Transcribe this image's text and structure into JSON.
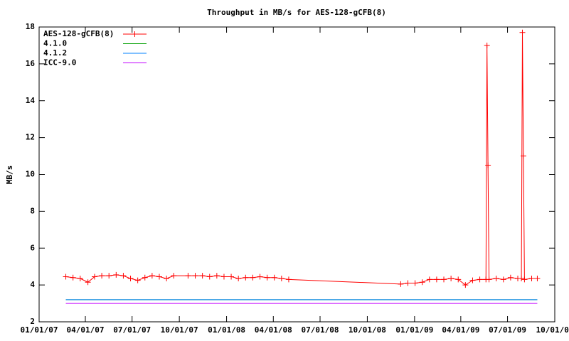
{
  "chart_data": {
    "type": "line",
    "title": "Throughput in MB/s for AES-128-gCFB(8)",
    "y_label": "MB/s",
    "xlim": [
      "2007-01-01",
      "2009-10-01"
    ],
    "xticks": [
      {
        "value": "2007-01-01",
        "label": "01/01/07"
      },
      {
        "value": "2007-04-01",
        "label": "04/01/07"
      },
      {
        "value": "2007-07-01",
        "label": "07/01/07"
      },
      {
        "value": "2007-10-01",
        "label": "10/01/07"
      },
      {
        "value": "2008-01-01",
        "label": "01/01/08"
      },
      {
        "value": "2008-04-01",
        "label": "04/01/08"
      },
      {
        "value": "2008-07-01",
        "label": "07/01/08"
      },
      {
        "value": "2008-10-01",
        "label": "10/01/08"
      },
      {
        "value": "2009-01-01",
        "label": "01/01/09"
      },
      {
        "value": "2009-04-01",
        "label": "04/01/09"
      },
      {
        "value": "2009-07-01",
        "label": "07/01/09"
      },
      {
        "value": "2009-10-01",
        "label": "10/01/09"
      }
    ],
    "ylim": [
      2,
      18
    ],
    "yticks": [
      2,
      4,
      6,
      8,
      10,
      12,
      14,
      16,
      18
    ],
    "legend": "top-left",
    "series": [
      {
        "name": "AES-128-gCFB(8)",
        "color": "#ff0000",
        "marker": "plus",
        "x": [
          "2007-02-22",
          "2007-03-08",
          "2007-03-22",
          "2007-04-06",
          "2007-04-19",
          "2007-05-03",
          "2007-05-17",
          "2007-05-31",
          "2007-06-14",
          "2007-06-28",
          "2007-07-12",
          "2007-07-26",
          "2007-08-09",
          "2007-08-23",
          "2007-09-06",
          "2007-09-20",
          "2007-10-18",
          "2007-11-01",
          "2007-11-15",
          "2007-11-29",
          "2007-12-13",
          "2007-12-27",
          "2008-01-10",
          "2008-01-24",
          "2008-02-07",
          "2008-02-21",
          "2008-03-06",
          "2008-03-20",
          "2008-04-03",
          "2008-04-17",
          "2008-05-01",
          "2008-12-05",
          "2008-12-19",
          "2009-01-02",
          "2009-01-16",
          "2009-01-30",
          "2009-02-13",
          "2009-02-27",
          "2009-03-13",
          "2009-03-27",
          "2009-04-10",
          "2009-04-24",
          "2009-05-08",
          "2009-05-20",
          "2009-05-22",
          "2009-05-24",
          "2009-05-26",
          "2009-06-09",
          "2009-06-23",
          "2009-07-07",
          "2009-07-21",
          "2009-07-28",
          "2009-07-30",
          "2009-08-01",
          "2009-08-03",
          "2009-08-17",
          "2009-08-28"
        ],
        "values": [
          4.45,
          4.4,
          4.35,
          4.15,
          4.45,
          4.5,
          4.5,
          4.55,
          4.5,
          4.35,
          4.25,
          4.4,
          4.5,
          4.45,
          4.35,
          4.5,
          4.5,
          4.5,
          4.5,
          4.45,
          4.5,
          4.45,
          4.45,
          4.35,
          4.4,
          4.4,
          4.45,
          4.4,
          4.4,
          4.35,
          4.3,
          4.05,
          4.1,
          4.1,
          4.15,
          4.3,
          4.3,
          4.3,
          4.35,
          4.3,
          4.0,
          4.25,
          4.3,
          4.3,
          17.0,
          10.5,
          4.3,
          4.35,
          4.3,
          4.4,
          4.35,
          4.35,
          17.7,
          11.0,
          4.3,
          4.35,
          4.35
        ]
      },
      {
        "name": "4.1.0",
        "color": "#00a000",
        "x": [
          "2007-02-22",
          "2009-08-28"
        ],
        "values": [
          3.2,
          3.2
        ]
      },
      {
        "name": "4.1.2",
        "color": "#0080ff",
        "x": [
          "2007-02-22",
          "2009-08-28"
        ],
        "values": [
          3.2,
          3.2
        ]
      },
      {
        "name": "ICC-9.0",
        "color": "#c000ff",
        "x": [
          "2007-02-22",
          "2009-08-28"
        ],
        "values": [
          3.0,
          3.0
        ]
      }
    ]
  }
}
